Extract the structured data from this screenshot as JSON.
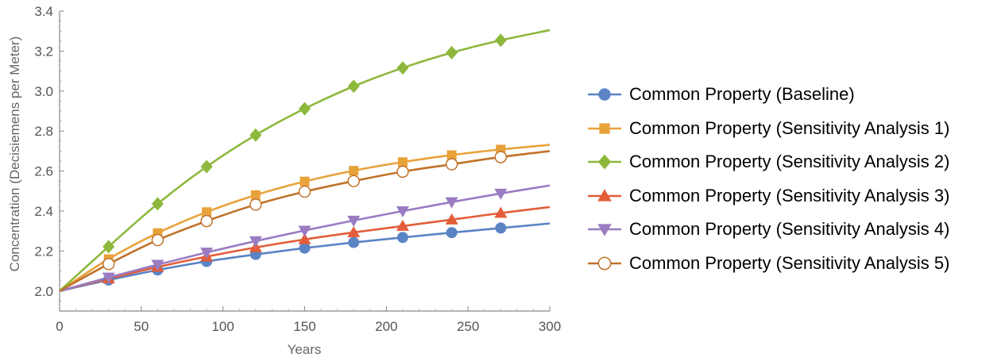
{
  "chart_data": {
    "type": "line",
    "xlabel": "Years",
    "ylabel": "Concentration (Decisiemens per Meter)",
    "xlim": [
      0,
      300
    ],
    "ylim": [
      1.9,
      3.4
    ],
    "xticks": [
      "0",
      "50",
      "100",
      "150",
      "200",
      "250",
      "300"
    ],
    "yticks": [
      "2.0",
      "2.2",
      "2.4",
      "2.6",
      "2.8",
      "3.0",
      "3.2",
      "3.4"
    ],
    "grid": false,
    "legend_position": "right",
    "series": [
      {
        "name": "Common Property (Baseline)",
        "color": "#5a84c4",
        "marker": "circle",
        "x": [
          0,
          30,
          60,
          90,
          120,
          150,
          180,
          210,
          240,
          270,
          300
        ],
        "y": [
          2.0,
          2.055,
          2.105,
          2.148,
          2.183,
          2.215,
          2.243,
          2.268,
          2.292,
          2.315,
          2.338
        ]
      },
      {
        "name": "Common Property (Sensitivity Analysis 1)",
        "color": "#e8a23a",
        "marker": "square",
        "x": [
          0,
          30,
          60,
          90,
          120,
          150,
          180,
          210,
          240,
          270,
          300
        ],
        "y": [
          2.0,
          2.16,
          2.29,
          2.395,
          2.48,
          2.548,
          2.602,
          2.645,
          2.68,
          2.708,
          2.731
        ]
      },
      {
        "name": "Common Property (Sensitivity Analysis 2)",
        "color": "#8db83c",
        "marker": "diamond",
        "x": [
          0,
          30,
          60,
          90,
          120,
          150,
          180,
          210,
          240,
          270,
          300
        ],
        "y": [
          2.0,
          2.222,
          2.436,
          2.622,
          2.78,
          2.912,
          3.024,
          3.116,
          3.192,
          3.254,
          3.305
        ]
      },
      {
        "name": "Common Property (Sensitivity Analysis 3)",
        "color": "#e35d3a",
        "marker": "triangle-up",
        "x": [
          0,
          30,
          60,
          90,
          120,
          150,
          180,
          210,
          240,
          270,
          300
        ],
        "y": [
          2.0,
          2.062,
          2.12,
          2.172,
          2.218,
          2.258,
          2.293,
          2.325,
          2.357,
          2.39,
          2.42
        ]
      },
      {
        "name": "Common Property (Sensitivity Analysis 4)",
        "color": "#9a7cc2",
        "marker": "triangle-down",
        "x": [
          0,
          30,
          60,
          90,
          120,
          150,
          180,
          210,
          240,
          270,
          300
        ],
        "y": [
          2.0,
          2.068,
          2.132,
          2.193,
          2.25,
          2.303,
          2.353,
          2.4,
          2.445,
          2.488,
          2.528
        ]
      },
      {
        "name": "Common Property (Sensitivity Analysis 5)",
        "color": "#c0722a",
        "marker": "open-circle",
        "x": [
          0,
          30,
          60,
          90,
          120,
          150,
          180,
          210,
          240,
          270,
          300
        ],
        "y": [
          2.0,
          2.135,
          2.255,
          2.35,
          2.432,
          2.497,
          2.55,
          2.597,
          2.634,
          2.67,
          2.7
        ]
      }
    ]
  }
}
